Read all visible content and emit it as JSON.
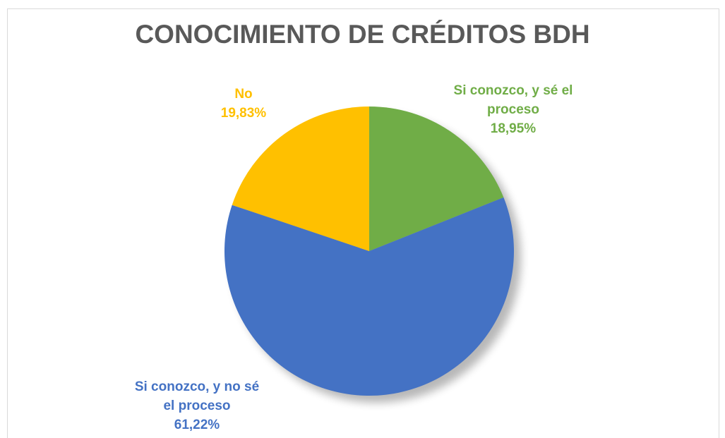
{
  "chart_data": {
    "type": "pie",
    "title": "CONOCIMIENTO DE CRÉDITOS BDH",
    "categories": [
      "Si conozco, y sé el proceso",
      "Si conozco, y no sé el proceso",
      "No"
    ],
    "values": [
      18.95,
      61.22,
      19.83
    ],
    "value_labels": [
      "18,95%",
      "61,22%",
      "19,83%"
    ],
    "colors": [
      "#70ad47",
      "#4472c4",
      "#ffc000"
    ]
  }
}
